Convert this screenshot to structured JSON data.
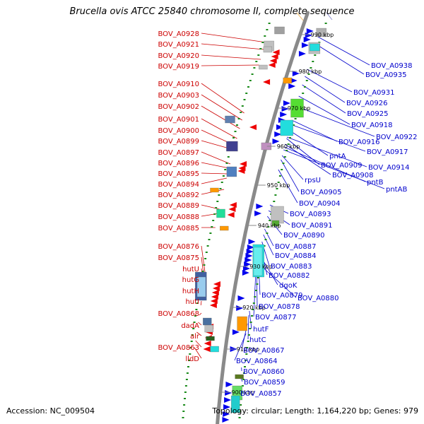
{
  "title": "Brucella ovis ATCC 25840 chromosome II, complete sequence",
  "footer": {
    "accession": "Accession: NC_009504",
    "topology": "Topology: circular; Length: 1,164,220 bp; Genes: 979"
  },
  "colors": {
    "backbone": "#8a8a8a",
    "left_labels": "#cc0000",
    "right_labels": "#0000cc",
    "dots": "#1a8a1a"
  },
  "kbp_ticks": [
    "990 kbp",
    "980 kbp",
    "970 kbp",
    "960 kbp",
    "950 kbp",
    "940 kbp",
    "930 kbp",
    "920 kbp",
    "910 kbp",
    "900 kbp"
  ],
  "left_labels": [
    "BOV_A0928",
    "BOV_A0921",
    "BOV_A0920",
    "BOV_A0919",
    "BOV_A0910",
    "BOV_A0903",
    "BOV_A0902",
    "BOV_A0901",
    "BOV_A0900",
    "BOV_A0899",
    "BOV_A0897",
    "BOV_A0896",
    "BOV_A0895",
    "BOV_A0894",
    "BOV_A0892",
    "BOV_A0889",
    "BOV_A0888",
    "BOV_A0885",
    "BOV_A0876",
    "BOV_A0875",
    "hutU",
    "hutG",
    "hutH",
    "hutI",
    "BOV_A0868",
    "dadA",
    "alr",
    "BOV_A0863",
    "lldD"
  ],
  "right_labels": [
    "BOV_A0938",
    "BOV_A0935",
    "BOV_A0931",
    "BOV_A0926",
    "BOV_A0925",
    "BOV_A0918",
    "BOV_A0922",
    "BOV_A0916",
    "BOV_A0917",
    "pntA",
    "BOV_A0914",
    "BOV_A0909",
    "BOV_A0908",
    "pntB",
    "pntAB",
    "rpsU",
    "BOV_A0905",
    "BOV_A0904",
    "BOV_A0893",
    "BOV_A0891",
    "BOV_A0890",
    "BOV_A0887",
    "BOV_A0884",
    "BOV_A0883",
    "BOV_A0882",
    "dgoK",
    "BOV_A0879",
    "BOV_A0880",
    "BOV_A0878",
    "BOV_A0877",
    "hutF",
    "hutC",
    "BOV_A0867",
    "BOV_A0864",
    "BOV_A0860",
    "BOV_A0859",
    "BOV_A0857"
  ]
}
